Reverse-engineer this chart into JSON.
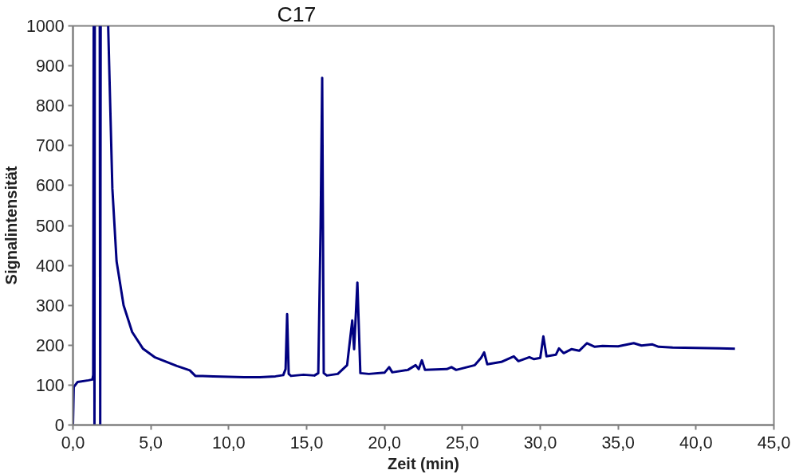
{
  "chart_data": {
    "type": "line",
    "xlabel": "Zeit (min)",
    "ylabel": "Signalintensität",
    "x": [
      0,
      0.05,
      0.3,
      1.0,
      1.25,
      1.3,
      1.33,
      null,
      1.36,
      1.38,
      1.4,
      null,
      1.72,
      1.75,
      1.78,
      null,
      2.26,
      2.53,
      2.8,
      3.25,
      3.8,
      4.5,
      5.24,
      6.67,
      7.5,
      7.86,
      9.0,
      10.0,
      11.0,
      12.0,
      13.0,
      13.5,
      13.65,
      13.75,
      13.85,
      14.0,
      14.8,
      15.5,
      15.75,
      15.9,
      16.0,
      16.1,
      16.3,
      17.0,
      17.6,
      17.93,
      18.05,
      18.26,
      18.45,
      19.0,
      20.0,
      20.3,
      20.5,
      21.5,
      22.0,
      22.2,
      22.4,
      22.6,
      24.0,
      24.3,
      24.6,
      25.8,
      26.2,
      26.4,
      26.6,
      27.5,
      28.3,
      28.6,
      29.3,
      29.6,
      30.0,
      30.2,
      30.4,
      31.0,
      31.2,
      31.5,
      32.0,
      32.5,
      33.0,
      33.5,
      34.0,
      35.0,
      36.0,
      36.5,
      37.2,
      37.6,
      38.5,
      40.0,
      41.5,
      42.5
    ],
    "series": [
      {
        "color": "#000080",
        "values": [
          0,
          95,
          108,
          112,
          114,
          125,
          1000,
          null,
          1000,
          0,
          1000,
          null,
          1000,
          0,
          1000,
          null,
          1000,
          592,
          410,
          300,
          233,
          191,
          170,
          148,
          137,
          123,
          122,
          121,
          120,
          120,
          122,
          125,
          140,
          278,
          128,
          123,
          126,
          124,
          130,
          500,
          870,
          130,
          124,
          128,
          150,
          262,
          190,
          357,
          130,
          128,
          131,
          145,
          132,
          138,
          150,
          140,
          162,
          138,
          140,
          145,
          138,
          150,
          168,
          182,
          152,
          158,
          172,
          160,
          170,
          165,
          168,
          222,
          172,
          176,
          192,
          180,
          190,
          186,
          205,
          196,
          198,
          197,
          205,
          199,
          202,
          196,
          194,
          193,
          192,
          191
        ]
      }
    ],
    "xlim": [
      0,
      45
    ],
    "ylim": [
      0,
      1000
    ],
    "xticks": [
      {
        "value": 0,
        "label": "0,0"
      },
      {
        "value": 5,
        "label": "5,0"
      },
      {
        "value": 10,
        "label": "10,0"
      },
      {
        "value": 15,
        "label": "15,0"
      },
      {
        "value": 20,
        "label": "20,0"
      },
      {
        "value": 25,
        "label": "25,0"
      },
      {
        "value": 30,
        "label": "30,0"
      },
      {
        "value": 35,
        "label": "35,0"
      },
      {
        "value": 40,
        "label": "40,0"
      },
      {
        "value": 45,
        "label": "45,0"
      }
    ],
    "yticks": [
      0,
      100,
      200,
      300,
      400,
      500,
      600,
      700,
      800,
      900,
      1000
    ],
    "annotations": [
      "C17"
    ],
    "grid": false,
    "marker": "none",
    "line_style": "solid"
  }
}
